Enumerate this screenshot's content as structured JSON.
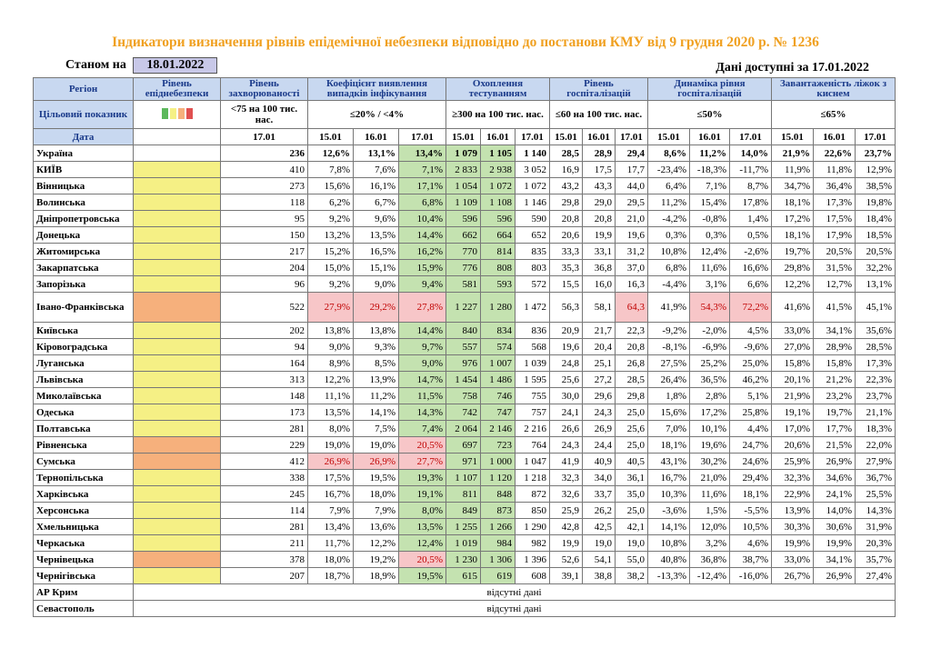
{
  "title": "Індикатори визначення рівнів епідемічної небезпеки відповідно до постанови КМУ від 9 грудня 2020 р. № 1236",
  "status_label": "Станом на",
  "status_date": "18.01.2022",
  "available_label": "Дані доступні за",
  "available_date": "17.01.2022",
  "headers": {
    "region": "Регіон",
    "level": "Рівень епіднебезпеки",
    "morbidity": "Рівень захворюваності",
    "detection": "Коефіцієнт виявлення випадків інфікування",
    "testing": "Охоплення тестуванням",
    "hosp": "Рівень госпіталізацій",
    "hosp_dyn": "Динаміка рівня госпіталізацій",
    "beds": "Завантаженість ліжок з киснем"
  },
  "targets": {
    "label": "Цільовий показник",
    "morbidity": "<75 на 100 тис. нас.",
    "detection": "≤20% / <4%",
    "testing": "≥300 на 100 тис. нас.",
    "hosp": "≤60 на 100 тис. нас.",
    "hosp_dyn": "≤50%",
    "beds": "≤65%"
  },
  "legend_colors": [
    "#5cb85c",
    "#f5f085",
    "#f6b07c",
    "#e05050"
  ],
  "dates": {
    "label": "Дата",
    "morbidity": "17.01",
    "d1": "15.01",
    "d2": "16.01",
    "d3": "17.01"
  },
  "ukraine": [
    "Україна",
    "236",
    "12,6%",
    "13,1%",
    "13,4%",
    "1 079",
    "1 105",
    "1 140",
    "28,5",
    "28,9",
    "29,4",
    "8,6%",
    "11,2%",
    "14,0%",
    "21,9%",
    "22,6%",
    "23,7%"
  ],
  "rows": [
    {
      "level": "yellow",
      "c": [
        "КИЇВ",
        "410",
        "7,8%",
        "7,6%",
        "7,1%",
        "2 833",
        "2 938",
        "3 052",
        "16,9",
        "17,5",
        "17,7",
        "-23,4%",
        "-18,3%",
        "-11,7%",
        "11,9%",
        "11,8%",
        "12,9%"
      ]
    },
    {
      "level": "yellow",
      "c": [
        "Вінницька",
        "273",
        "15,6%",
        "16,1%",
        "17,1%",
        "1 054",
        "1 072",
        "1 072",
        "43,2",
        "43,3",
        "44,0",
        "6,4%",
        "7,1%",
        "8,7%",
        "34,7%",
        "36,4%",
        "38,5%"
      ]
    },
    {
      "level": "yellow",
      "c": [
        "Волинська",
        "118",
        "6,2%",
        "6,7%",
        "6,8%",
        "1 109",
        "1 108",
        "1 146",
        "29,8",
        "29,0",
        "29,5",
        "11,2%",
        "15,4%",
        "17,8%",
        "18,1%",
        "17,3%",
        "19,8%"
      ]
    },
    {
      "level": "yellow",
      "c": [
        "Дніпропетровська",
        "95",
        "9,2%",
        "9,6%",
        "10,4%",
        "596",
        "596",
        "590",
        "20,8",
        "20,8",
        "21,0",
        "-4,2%",
        "-0,8%",
        "1,4%",
        "17,2%",
        "17,5%",
        "18,4%"
      ]
    },
    {
      "level": "yellow",
      "c": [
        "Донецька",
        "150",
        "13,2%",
        "13,5%",
        "14,4%",
        "662",
        "664",
        "652",
        "20,6",
        "19,9",
        "19,6",
        "0,3%",
        "0,3%",
        "0,5%",
        "18,1%",
        "17,9%",
        "18,5%"
      ]
    },
    {
      "level": "yellow",
      "c": [
        "Житомирська",
        "217",
        "15,2%",
        "16,5%",
        "16,2%",
        "770",
        "814",
        "835",
        "33,3",
        "33,1",
        "31,2",
        "10,8%",
        "12,4%",
        "-2,6%",
        "19,7%",
        "20,5%",
        "20,5%"
      ]
    },
    {
      "level": "yellow",
      "c": [
        "Закарпатська",
        "204",
        "15,0%",
        "15,1%",
        "15,9%",
        "776",
        "808",
        "803",
        "35,3",
        "36,8",
        "37,0",
        "6,8%",
        "11,6%",
        "16,6%",
        "29,8%",
        "31,5%",
        "32,2%"
      ]
    },
    {
      "level": "yellow",
      "c": [
        "Запорізька",
        "96",
        "9,2%",
        "9,0%",
        "9,4%",
        "581",
        "593",
        "572",
        "15,5",
        "16,0",
        "16,3",
        "-4,4%",
        "3,1%",
        "6,6%",
        "12,2%",
        "12,7%",
        "13,1%"
      ]
    },
    {
      "level": "orange",
      "tall": true,
      "c": [
        "Івано-Франківська",
        "522",
        "27,9%",
        "29,2%",
        "27,8%",
        "1 227",
        "1 280",
        "1 472",
        "56,3",
        "58,1",
        "64,3",
        "41,9%",
        "54,3%",
        "72,2%",
        "41,6%",
        "41,5%",
        "45,1%"
      ],
      "pink": [
        2,
        3,
        4,
        10,
        12,
        13
      ]
    },
    {
      "level": "yellow",
      "c": [
        "Київська",
        "202",
        "13,8%",
        "13,8%",
        "14,4%",
        "840",
        "834",
        "836",
        "20,9",
        "21,7",
        "22,3",
        "-9,2%",
        "-2,0%",
        "4,5%",
        "33,0%",
        "34,1%",
        "35,6%"
      ]
    },
    {
      "level": "yellow",
      "c": [
        "Кіровоградська",
        "94",
        "9,0%",
        "9,3%",
        "9,7%",
        "557",
        "574",
        "568",
        "19,6",
        "20,4",
        "20,8",
        "-8,1%",
        "-6,9%",
        "-9,6%",
        "27,0%",
        "28,9%",
        "28,5%"
      ]
    },
    {
      "level": "yellow",
      "c": [
        "Луганська",
        "164",
        "8,9%",
        "8,5%",
        "9,0%",
        "976",
        "1 007",
        "1 039",
        "24,8",
        "25,1",
        "26,8",
        "27,5%",
        "25,2%",
        "25,0%",
        "15,8%",
        "15,8%",
        "17,3%"
      ]
    },
    {
      "level": "yellow",
      "c": [
        "Львівська",
        "313",
        "12,2%",
        "13,9%",
        "14,7%",
        "1 454",
        "1 486",
        "1 595",
        "25,6",
        "27,2",
        "28,5",
        "26,4%",
        "36,5%",
        "46,2%",
        "20,1%",
        "21,2%",
        "22,3%"
      ]
    },
    {
      "level": "yellow",
      "c": [
        "Миколаївська",
        "148",
        "11,1%",
        "11,2%",
        "11,5%",
        "758",
        "746",
        "755",
        "30,0",
        "29,6",
        "29,8",
        "1,8%",
        "2,8%",
        "5,1%",
        "21,9%",
        "23,2%",
        "23,7%"
      ]
    },
    {
      "level": "yellow",
      "c": [
        "Одеська",
        "173",
        "13,5%",
        "14,1%",
        "14,3%",
        "742",
        "747",
        "757",
        "24,1",
        "24,3",
        "25,0",
        "15,6%",
        "17,2%",
        "25,8%",
        "19,1%",
        "19,7%",
        "21,1%"
      ]
    },
    {
      "level": "yellow",
      "c": [
        "Полтавська",
        "281",
        "8,0%",
        "7,5%",
        "7,4%",
        "2 064",
        "2 146",
        "2 216",
        "26,6",
        "26,9",
        "25,6",
        "7,0%",
        "10,1%",
        "4,4%",
        "17,0%",
        "17,7%",
        "18,3%"
      ]
    },
    {
      "level": "orange",
      "c": [
        "Рівненська",
        "229",
        "19,0%",
        "19,0%",
        "20,5%",
        "697",
        "723",
        "764",
        "24,3",
        "24,4",
        "25,0",
        "18,1%",
        "19,6%",
        "24,7%",
        "20,6%",
        "21,5%",
        "22,0%"
      ],
      "pink": [
        4
      ]
    },
    {
      "level": "orange",
      "c": [
        "Сумська",
        "412",
        "26,9%",
        "26,9%",
        "27,7%",
        "971",
        "1 000",
        "1 047",
        "41,9",
        "40,9",
        "40,5",
        "43,1%",
        "30,2%",
        "24,6%",
        "25,9%",
        "26,9%",
        "27,9%"
      ],
      "pink": [
        2,
        3,
        4
      ]
    },
    {
      "level": "yellow",
      "c": [
        "Тернопільська",
        "338",
        "17,5%",
        "19,5%",
        "19,3%",
        "1 107",
        "1 120",
        "1 218",
        "32,3",
        "34,0",
        "36,1",
        "16,7%",
        "21,0%",
        "29,4%",
        "32,3%",
        "34,6%",
        "36,7%"
      ]
    },
    {
      "level": "yellow",
      "c": [
        "Харківська",
        "245",
        "16,7%",
        "18,0%",
        "19,1%",
        "811",
        "848",
        "872",
        "32,6",
        "33,7",
        "35,0",
        "10,3%",
        "11,6%",
        "18,1%",
        "22,9%",
        "24,1%",
        "25,5%"
      ]
    },
    {
      "level": "yellow",
      "c": [
        "Херсонська",
        "114",
        "7,9%",
        "7,9%",
        "8,0%",
        "849",
        "873",
        "850",
        "25,9",
        "26,2",
        "25,0",
        "-3,6%",
        "1,5%",
        "-5,5%",
        "13,9%",
        "14,0%",
        "14,3%"
      ]
    },
    {
      "level": "yellow",
      "c": [
        "Хмельницька",
        "281",
        "13,4%",
        "13,6%",
        "13,5%",
        "1 255",
        "1 266",
        "1 290",
        "42,8",
        "42,5",
        "42,1",
        "14,1%",
        "12,0%",
        "10,5%",
        "30,3%",
        "30,6%",
        "31,9%"
      ]
    },
    {
      "level": "yellow",
      "c": [
        "Черкаська",
        "211",
        "11,7%",
        "12,2%",
        "12,4%",
        "1 019",
        "984",
        "982",
        "19,9",
        "19,0",
        "19,0",
        "10,8%",
        "3,2%",
        "4,6%",
        "19,9%",
        "19,9%",
        "20,3%"
      ]
    },
    {
      "level": "orange",
      "c": [
        "Чернівецька",
        "378",
        "18,0%",
        "19,2%",
        "20,5%",
        "1 230",
        "1 306",
        "1 396",
        "52,6",
        "54,1",
        "55,0",
        "40,8%",
        "36,8%",
        "38,7%",
        "33,0%",
        "34,1%",
        "35,7%"
      ],
      "pink": [
        4
      ]
    },
    {
      "level": "yellow",
      "c": [
        "Чернігівська",
        "207",
        "18,7%",
        "18,9%",
        "19,5%",
        "615",
        "619",
        "608",
        "39,1",
        "38,8",
        "38,2",
        "-13,3%",
        "-12,4%",
        "-16,0%",
        "26,7%",
        "26,9%",
        "27,4%"
      ]
    }
  ],
  "missing_rows": [
    {
      "region": "АР Крим",
      "text": "відсутні дані"
    },
    {
      "region": "Севастополь",
      "text": "відсутні дані"
    }
  ]
}
